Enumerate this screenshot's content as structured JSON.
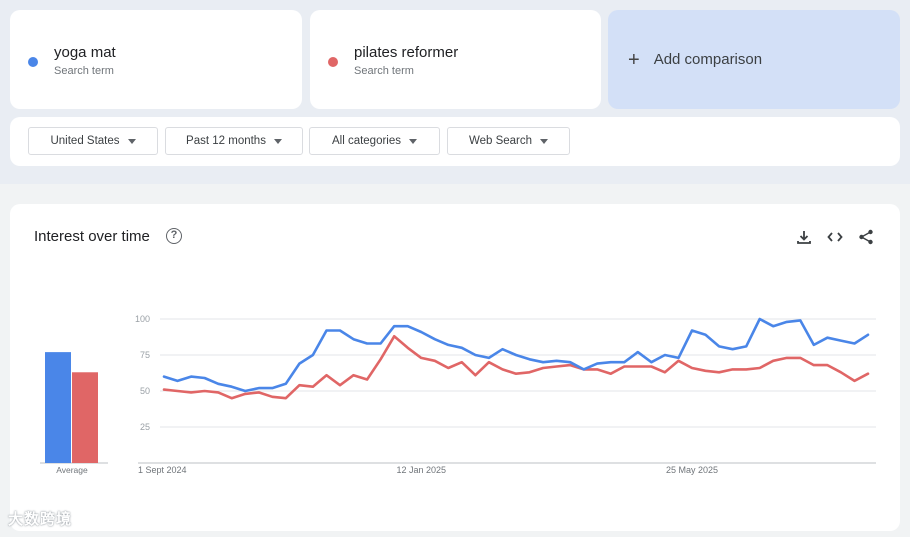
{
  "terms": [
    {
      "name": "yoga mat",
      "sub": "Search term",
      "color": "#4a86e8"
    },
    {
      "name": "pilates reformer",
      "sub": "Search term",
      "color": "#e06666"
    }
  ],
  "add_comparison": "Add comparison",
  "filters": [
    {
      "label": "United States"
    },
    {
      "label": "Past 12 months"
    },
    {
      "label": "All categories"
    },
    {
      "label": "Web Search"
    }
  ],
  "chart_title": "Interest over time",
  "watermark": "大数跨境",
  "chart_data": {
    "type": "line",
    "title": "Interest over time",
    "y_ticks": [
      100,
      75,
      50,
      25
    ],
    "ylim": [
      0,
      100
    ],
    "x_tick_labels": [
      "1 Sept 2024",
      "12 Jan 2025",
      "25 May 2025"
    ],
    "x_tick_index": [
      0,
      19,
      39
    ],
    "grid": true,
    "average_bars": {
      "label": "Average",
      "values": [
        77,
        63
      ]
    },
    "series": [
      {
        "name": "yoga mat",
        "color": "#4a86e8",
        "values": [
          60,
          57,
          60,
          59,
          55,
          53,
          50,
          52,
          52,
          55,
          69,
          75,
          92,
          92,
          86,
          83,
          83,
          95,
          95,
          91,
          86,
          82,
          80,
          75,
          73,
          79,
          75,
          72,
          70,
          71,
          70,
          65,
          69,
          70,
          70,
          77,
          70,
          75,
          73,
          92,
          89,
          81,
          79,
          81,
          100,
          95,
          98,
          99,
          82,
          87,
          85,
          83,
          89
        ]
      },
      {
        "name": "pilates reformer",
        "color": "#e06666",
        "values": [
          51,
          50,
          49,
          50,
          49,
          45,
          48,
          49,
          46,
          45,
          54,
          53,
          61,
          54,
          61,
          58,
          72,
          88,
          80,
          73,
          71,
          66,
          70,
          61,
          70,
          65,
          62,
          63,
          66,
          67,
          68,
          65,
          65,
          62,
          67,
          67,
          67,
          63,
          71,
          66,
          64,
          63,
          65,
          65,
          66,
          71,
          73,
          73,
          68,
          68,
          63,
          57,
          62
        ]
      }
    ]
  }
}
